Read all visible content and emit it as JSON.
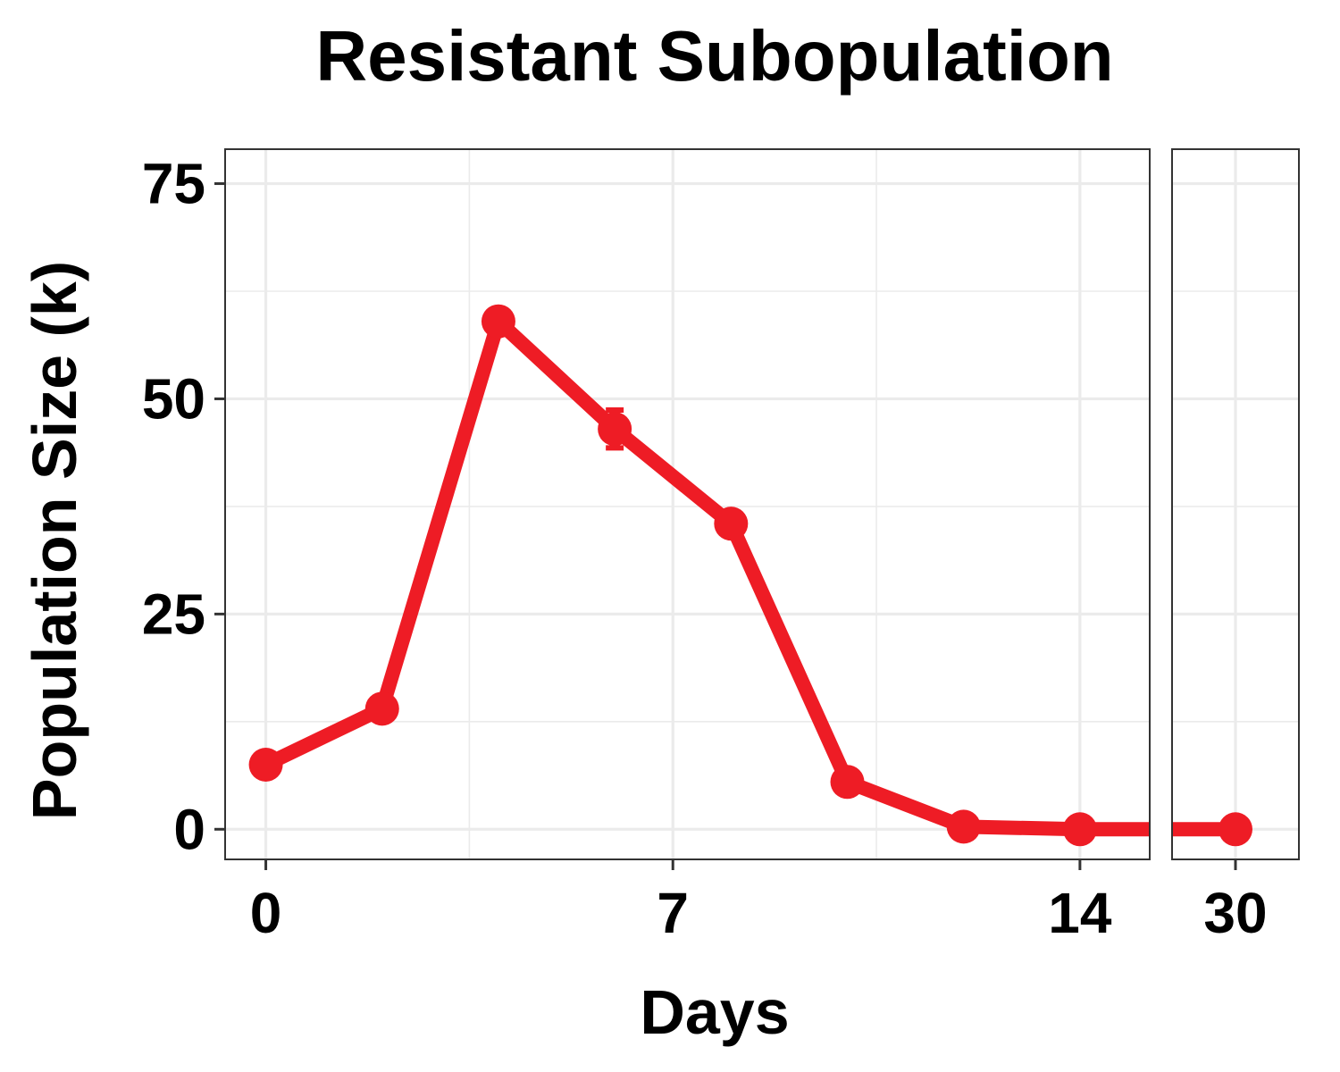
{
  "chart_data": {
    "type": "line",
    "title": "Resistant Subopulation",
    "xlabel": "Days",
    "ylabel": "Population Size (k)",
    "ylim": [
      -3.5,
      79
    ],
    "y_ticks": [
      0,
      25,
      50,
      75
    ],
    "grid": true,
    "panels": [
      {
        "xlim": [
          -0.7,
          15.2
        ],
        "x_ticks": [
          0,
          7,
          14
        ],
        "x_minor": [
          3.5,
          10.5
        ]
      },
      {
        "xlim": [
          28.2,
          31.8
        ],
        "x_ticks": [
          30
        ],
        "x_minor": []
      }
    ],
    "series": [
      {
        "color": "#EE1C25",
        "x": [
          0,
          2,
          4,
          6,
          8,
          10,
          12,
          14,
          30
        ],
        "y": [
          7.5,
          14,
          59,
          46.5,
          35.5,
          5.5,
          0.3,
          0,
          0
        ],
        "error": [
          0,
          0,
          0,
          2.2,
          0,
          0,
          0,
          0,
          0
        ]
      }
    ]
  }
}
